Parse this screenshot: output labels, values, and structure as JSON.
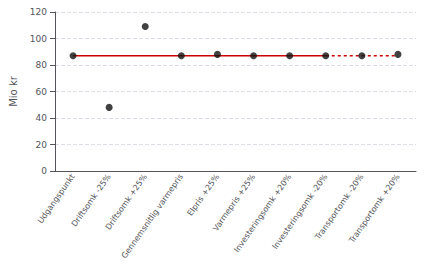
{
  "chart_data": {
    "type": "scatter",
    "categories": [
      "Udgangspunkt",
      "Driftsomk -25%",
      "Driftsomk +25%",
      "Gennemsnitlig varmepris",
      "Elpris +25%",
      "Varmepris +25%",
      "Investeringsomk +20%",
      "Investeringsomk -20%",
      "Transportomk -20%",
      "Transportomk +20%"
    ],
    "values": [
      87,
      48,
      109,
      87,
      88,
      87,
      87,
      87,
      87,
      88
    ],
    "color": "#111111",
    "reference_line": {
      "value": 87,
      "color": "#cc0000",
      "solid_until": "Investeringsomk -20%"
    },
    "ylabel": "Mio kr",
    "ylim": [
      0,
      120
    ],
    "yticks": [
      0,
      20,
      40,
      60,
      80,
      100,
      120
    ],
    "grid": true
  }
}
